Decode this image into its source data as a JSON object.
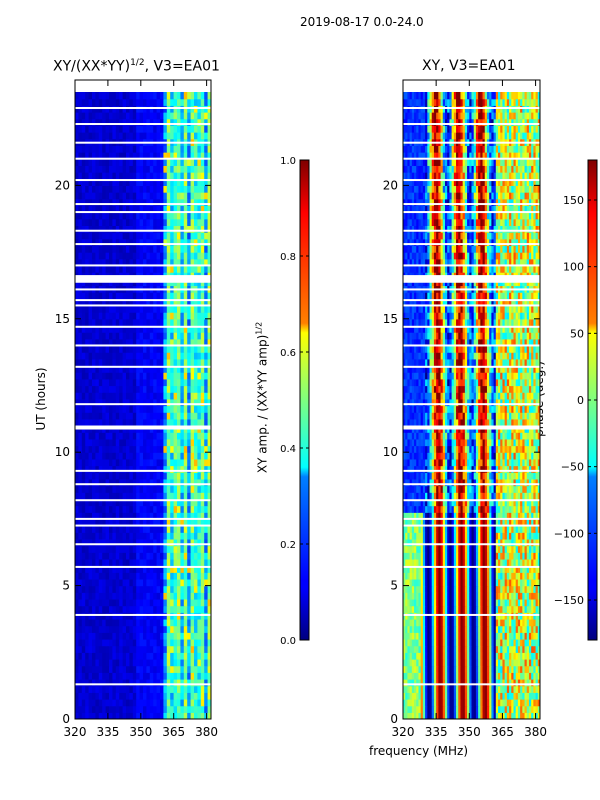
{
  "figure": {
    "suptitle": "2019-08-17 0.0-24.0",
    "shared_xlabel": "frequency (MHz)"
  },
  "chart_data": [
    {
      "type": "heatmap",
      "title": "XY/(XX*YY)^1/2, V3=EA01",
      "title_main": "XY/(XX*YY)",
      "title_exp": "1/2",
      "title_suffix": ", V3=EA01",
      "xlabel": "frequency (MHz)",
      "ylabel": "UT (hours)",
      "xlim": [
        320,
        382
      ],
      "ylim": [
        0,
        23.5
      ],
      "xticks": [
        320,
        335,
        350,
        365,
        380
      ],
      "yticks": [
        0,
        5,
        10,
        15,
        20
      ],
      "quantity": "normalized XY amplitude",
      "colorbar": {
        "label_main": "XY amp. / (XX*YY amp)",
        "label_exp": "1/2",
        "range": [
          0.0,
          1.0
        ],
        "ticks": [
          "0.0",
          "0.2",
          "0.4",
          "0.6",
          "0.8",
          "1.0"
        ],
        "colormap": "jet"
      },
      "gap_times_hours": [
        1.3,
        3.9,
        5.7,
        6.55,
        7.25,
        7.5,
        8.2,
        8.8,
        9.3,
        10.95,
        11.8,
        13.2,
        14.0,
        14.7,
        15.5,
        15.7,
        16.1,
        16.6,
        17.0,
        17.8,
        18.3,
        19.0,
        19.3,
        20.2,
        21.0,
        21.6,
        22.3,
        22.9
      ]
    },
    {
      "type": "heatmap",
      "title": "XY, V3=EA01",
      "xlabel": "frequency (MHz)",
      "ylabel": "",
      "xlim": [
        320,
        382
      ],
      "ylim": [
        0,
        23.5
      ],
      "xticks": [
        320,
        335,
        350,
        365,
        380
      ],
      "yticks": [
        0,
        5,
        10,
        15,
        20
      ],
      "quantity": "XY phase",
      "colorbar": {
        "label": "phase (deg.)",
        "range": [
          -180,
          180
        ],
        "ticks": [
          "−150",
          "−100",
          "−50",
          "0",
          "50",
          "100",
          "150"
        ],
        "tick_values": [
          -150,
          -100,
          -50,
          0,
          50,
          100,
          150
        ],
        "colormap": "jet"
      },
      "gap_times_hours": [
        1.3,
        3.9,
        5.7,
        6.55,
        7.25,
        7.5,
        8.2,
        8.8,
        9.3,
        10.95,
        11.8,
        13.2,
        14.0,
        14.7,
        15.5,
        15.7,
        16.1,
        16.6,
        17.0,
        17.8,
        18.3,
        19.0,
        19.3,
        20.2,
        21.0,
        21.6,
        22.3,
        22.9
      ]
    }
  ]
}
